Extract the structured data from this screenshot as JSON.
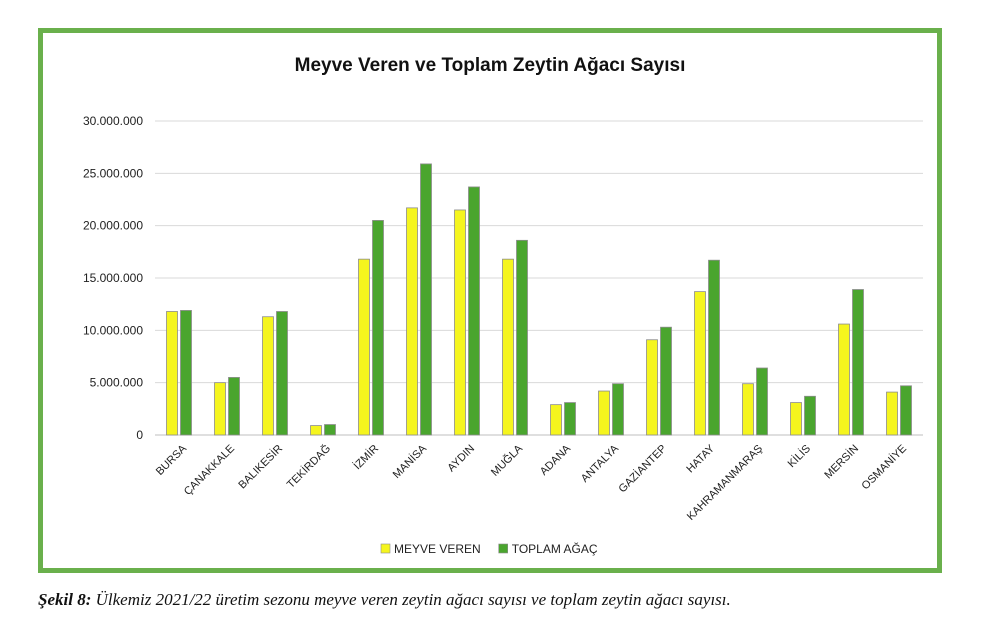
{
  "chart_data": {
    "type": "bar",
    "title": "Meyve Veren ve Toplam Zeytin Ağacı Sayısı",
    "categories": [
      "BURSA",
      "ÇANAKKALE",
      "BALIKESİR",
      "TEKİRDAĞ",
      "İZMİR",
      "MANİSA",
      "AYDIN",
      "MUĞLA",
      "ADANA",
      "ANTALYA",
      "GAZİANTEP",
      "HATAY",
      "KAHRAMANMARAŞ",
      "KİLİS",
      "MERSİN",
      "OSMANİYE"
    ],
    "series": [
      {
        "name": "MEYVE VEREN",
        "color": "#f5f51e",
        "values": [
          11800000,
          5000000,
          11300000,
          900000,
          16800000,
          21700000,
          21500000,
          16800000,
          2900000,
          4200000,
          9100000,
          13700000,
          4900000,
          3100000,
          10600000,
          4100000
        ]
      },
      {
        "name": "TOPLAM AĞAÇ",
        "color": "#4aa52e",
        "values": [
          11900000,
          5500000,
          11800000,
          1000000,
          20500000,
          25900000,
          23700000,
          18600000,
          3100000,
          4900000,
          10300000,
          16700000,
          6400000,
          3700000,
          13900000,
          4700000
        ]
      }
    ],
    "ylim": [
      0,
      30000000
    ],
    "yticks": [
      "0",
      "5.000.000",
      "10.000.000",
      "15.000.000",
      "20.000.000",
      "25.000.000",
      "30.000.000"
    ],
    "grid": true,
    "legend_position": "bottom",
    "xlabel": "",
    "ylabel": ""
  },
  "colors": {
    "frame": "#6ab04c",
    "grid": "#d9d9d9",
    "bar_edge": "#8c8c8c"
  },
  "caption": {
    "label": "Şekil 8:",
    "text": " Ülkemiz 2021/22 üretim sezonu meyve veren zeytin ağacı sayısı ve toplam zeytin ağacı sayısı."
  }
}
